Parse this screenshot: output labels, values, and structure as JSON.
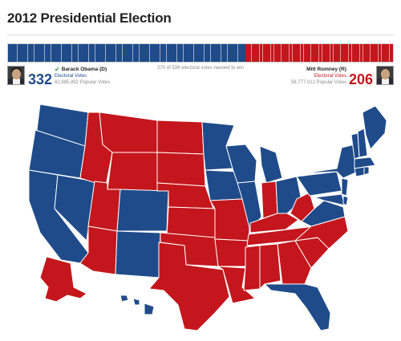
{
  "page": {
    "title": "2012 Presidential Election"
  },
  "tally": {
    "needed_text": "270 of 538 electoral votes needed to win",
    "dem_share": 0.617,
    "rep_share": 0.383,
    "dem_color": "#1f4b8a",
    "rep_color": "#c4161c"
  },
  "candidates": {
    "dem": {
      "name": "Barack Obama (D)",
      "electoral_votes": "332",
      "ev_label": "Electoral Votes",
      "popular_votes": "62,985,892 Popular Votes",
      "winner_icon": "checkmark-icon"
    },
    "rep": {
      "name": "Mitt Romney (R)",
      "electoral_votes": "206",
      "ev_label": "Electoral Votes",
      "popular_votes": "58,777,012 Popular Votes"
    }
  },
  "map": {
    "legend_colors": {
      "dem": "#1f4b8a",
      "rep": "#c4161c"
    }
  }
}
